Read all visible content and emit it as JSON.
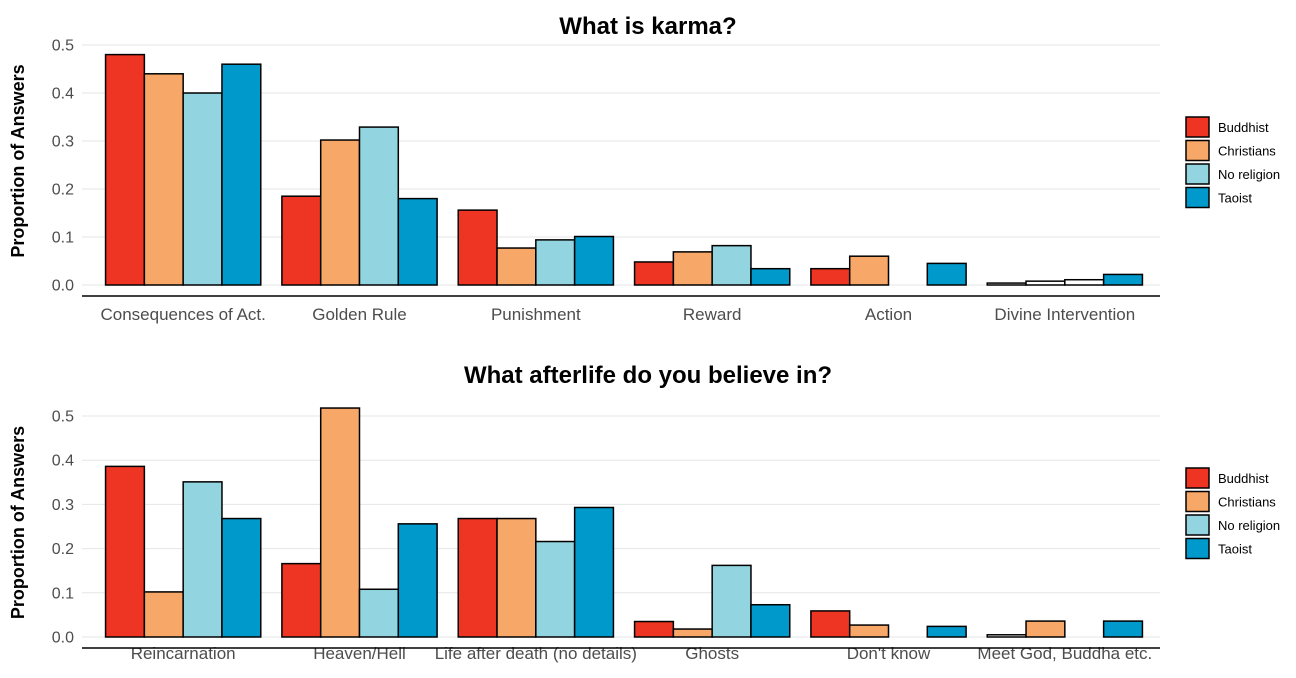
{
  "chart_data": [
    {
      "type": "bar",
      "title": "What is karma?",
      "ylabel": "Proportion of Answers",
      "xlabel": "",
      "ylim": [
        0,
        0.5
      ],
      "yticks": [
        "0.0",
        "0.1",
        "0.2",
        "0.3",
        "0.4",
        "0.5"
      ],
      "grid": true,
      "legend_position": "right",
      "categories": [
        "Consequences of Act.",
        "Golden Rule",
        "Punishment",
        "Reward",
        "Action",
        "Divine Intervention"
      ],
      "series": [
        {
          "name": "Buddhist",
          "color": "#ee3524",
          "values": [
            0.48,
            0.185,
            0.156,
            0.048,
            0.034,
            0.004
          ]
        },
        {
          "name": "Christians",
          "color": "#f7a767",
          "values": [
            0.44,
            0.302,
            0.077,
            0.069,
            0.06,
            0.008
          ]
        },
        {
          "name": "No religion",
          "color": "#92d5e0",
          "values": [
            0.4,
            0.329,
            0.094,
            0.082,
            0.0,
            0.011
          ]
        },
        {
          "name": "Taoist",
          "color": "#0099cc",
          "values": [
            0.46,
            0.18,
            0.101,
            0.034,
            0.045,
            0.022
          ]
        }
      ]
    },
    {
      "type": "bar",
      "title": "What afterlife do you believe in?",
      "ylabel": "Proportion of Answers",
      "xlabel": "",
      "ylim": [
        0,
        0.5
      ],
      "yticks": [
        "0.0",
        "0.1",
        "0.2",
        "0.3",
        "0.4",
        "0.5"
      ],
      "grid": true,
      "legend_position": "right",
      "categories": [
        "Reincarnation",
        "Heaven/Hell",
        "Life after death (no details)",
        "Ghosts",
        "Don't know",
        "Meet God, Buddha etc."
      ],
      "series": [
        {
          "name": "Buddhist",
          "color": "#ee3524",
          "values": [
            0.386,
            0.166,
            0.268,
            0.035,
            0.059,
            0.005
          ]
        },
        {
          "name": "Christians",
          "color": "#f7a767",
          "values": [
            0.102,
            0.518,
            0.268,
            0.018,
            0.027,
            0.036
          ]
        },
        {
          "name": "No religion",
          "color": "#92d5e0",
          "values": [
            0.351,
            0.108,
            0.216,
            0.162,
            0.0,
            0.0
          ]
        },
        {
          "name": "Taoist",
          "color": "#0099cc",
          "values": [
            0.268,
            0.256,
            0.293,
            0.073,
            0.024,
            0.036
          ]
        }
      ]
    }
  ]
}
